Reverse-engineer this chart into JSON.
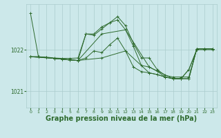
{
  "bg_color": "#cce8ea",
  "grid_color": "#aacccc",
  "line_color": "#2d6a2d",
  "marker_color": "#2d6a2d",
  "xlabel": "Graphe pression niveau de la mer (hPa)",
  "xlabel_fontsize": 7,
  "xlim": [
    -0.5,
    23.5
  ],
  "ylim": [
    1020.6,
    1023.1
  ],
  "yticks": [
    1021,
    1022
  ],
  "xticks": [
    0,
    1,
    2,
    3,
    4,
    5,
    6,
    7,
    8,
    9,
    10,
    11,
    12,
    13,
    14,
    15,
    16,
    17,
    18,
    19,
    20,
    21,
    22,
    23
  ],
  "lines": [
    {
      "x": [
        0,
        1,
        2,
        3,
        4,
        5,
        6,
        7,
        8,
        9,
        10,
        11,
        12,
        13,
        14,
        15,
        16,
        17,
        18,
        19,
        20,
        21,
        22,
        23
      ],
      "y": [
        1022.88,
        1021.83,
        1021.82,
        1021.8,
        1021.79,
        1021.79,
        1021.8,
        1022.38,
        1022.38,
        1022.55,
        1022.65,
        1022.8,
        1022.58,
        1022.15,
        1021.8,
        1021.8,
        1021.52,
        1021.38,
        1021.34,
        1021.34,
        1021.34,
        1022.02,
        1022.02,
        1022.02
      ]
    },
    {
      "x": [
        0,
        1,
        2,
        3,
        4,
        5,
        6,
        7,
        8,
        9,
        10,
        11,
        12,
        13,
        14,
        15,
        16,
        17,
        18,
        19,
        20,
        21,
        22,
        23
      ],
      "y": [
        1021.83,
        1021.83,
        1021.81,
        1021.79,
        1021.77,
        1021.75,
        1021.74,
        1022.38,
        1022.35,
        1022.5,
        1022.65,
        1022.72,
        1022.48,
        1022.08,
        1021.62,
        1021.58,
        1021.48,
        1021.34,
        1021.3,
        1021.3,
        1021.3,
        1022.02,
        1022.02,
        1022.02
      ]
    },
    {
      "x": [
        0,
        1,
        2,
        3,
        4,
        5,
        6,
        7,
        8,
        9,
        10,
        11,
        12,
        13,
        14,
        15,
        16,
        17,
        18,
        19,
        20,
        21,
        22,
        23
      ],
      "y": [
        1021.83,
        1021.83,
        1021.81,
        1021.79,
        1021.77,
        1021.75,
        1021.74,
        1021.8,
        1021.97,
        1021.93,
        1022.12,
        1022.28,
        1021.97,
        1021.58,
        1021.47,
        1021.44,
        1021.4,
        1021.34,
        1021.3,
        1021.3,
        1021.52,
        1022.0,
        1022.0,
        1022.0
      ]
    },
    {
      "x": [
        0,
        3,
        6,
        9,
        12,
        15,
        18,
        19,
        20,
        21,
        22,
        23
      ],
      "y": [
        1021.83,
        1021.79,
        1021.74,
        1022.38,
        1022.48,
        1021.58,
        1021.3,
        1021.3,
        1021.3,
        1022.02,
        1022.02,
        1022.02
      ]
    },
    {
      "x": [
        0,
        3,
        6,
        9,
        12,
        15,
        16,
        17,
        18,
        19,
        20,
        21
      ],
      "y": [
        1021.83,
        1021.79,
        1021.74,
        1021.8,
        1021.97,
        1021.44,
        1021.4,
        1021.34,
        1021.3,
        1021.3,
        1021.52,
        1022.0
      ]
    }
  ]
}
